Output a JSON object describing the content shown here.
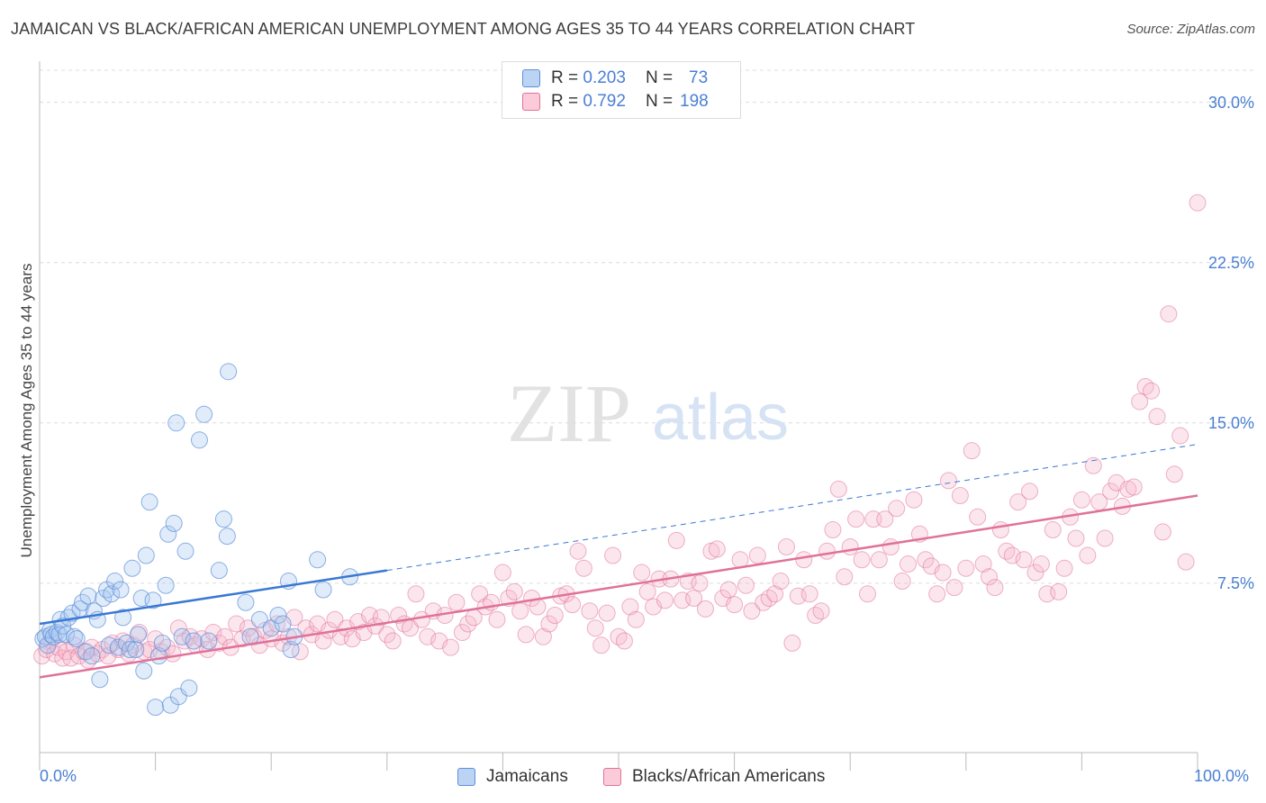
{
  "header": {
    "title": "JAMAICAN VS BLACK/AFRICAN AMERICAN UNEMPLOYMENT AMONG AGES 35 TO 44 YEARS CORRELATION CHART",
    "source": "Source: ZipAtlas.com"
  },
  "watermark": {
    "zip": "ZIP",
    "atlas": "atlas"
  },
  "legend_top": {
    "rows": [
      {
        "r_label": "R =",
        "r_value": "0.203",
        "n_label": "N =",
        "n_value": "73",
        "color": "#a9c8f0"
      },
      {
        "r_label": "R =",
        "r_value": "0.792",
        "n_label": "N =",
        "n_value": "198",
        "color": "#f7b6cb"
      }
    ]
  },
  "chart_data": {
    "type": "scatter",
    "title": "JAMAICAN VS BLACK/AFRICAN AMERICAN UNEMPLOYMENT AMONG AGES 35 TO 44 YEARS CORRELATION CHART",
    "xlabel": "",
    "ylabel": "Unemployment Among Ages 35 to 44 years",
    "xlim": [
      0,
      100
    ],
    "ylim": [
      0,
      31.5
    ],
    "x_tick_labels": [
      "0.0%",
      "100.0%"
    ],
    "y_ticks": [
      7.5,
      15.0,
      22.5,
      30.0
    ],
    "y_tick_labels": [
      "7.5%",
      "15.0%",
      "22.5%",
      "30.0%"
    ],
    "grid": "horizontal dashed",
    "legend_position": "top-center and bottom",
    "series": [
      {
        "name": "Jamaicans",
        "color": "#5b8fd9",
        "fill": "#a9c8f0",
        "trend": {
          "x": [
            0,
            30
          ],
          "y": [
            5.6,
            8.1
          ],
          "dashed_to": [
            100,
            14.0
          ]
        },
        "points": [
          [
            0.3,
            4.9
          ],
          [
            0.5,
            5.0
          ],
          [
            0.7,
            4.6
          ],
          [
            0.9,
            5.3
          ],
          [
            1.0,
            5.1
          ],
          [
            1.2,
            5.0
          ],
          [
            1.5,
            5.2
          ],
          [
            1.7,
            5.1
          ],
          [
            1.8,
            5.8
          ],
          [
            2.0,
            5.5
          ],
          [
            2.3,
            5.1
          ],
          [
            2.5,
            5.9
          ],
          [
            2.8,
            6.1
          ],
          [
            3.0,
            5.0
          ],
          [
            3.2,
            4.9
          ],
          [
            3.5,
            6.3
          ],
          [
            3.7,
            6.6
          ],
          [
            4.0,
            4.3
          ],
          [
            4.2,
            6.9
          ],
          [
            4.5,
            4.1
          ],
          [
            4.7,
            6.2
          ],
          [
            5.0,
            5.8
          ],
          [
            5.2,
            3.0
          ],
          [
            5.5,
            6.8
          ],
          [
            5.8,
            7.2
          ],
          [
            6.0,
            4.6
          ],
          [
            6.2,
            7.0
          ],
          [
            6.5,
            7.6
          ],
          [
            6.8,
            4.5
          ],
          [
            7.0,
            7.2
          ],
          [
            7.2,
            5.9
          ],
          [
            7.5,
            4.7
          ],
          [
            7.8,
            4.4
          ],
          [
            8.0,
            8.2
          ],
          [
            8.3,
            4.4
          ],
          [
            8.5,
            5.1
          ],
          [
            8.8,
            6.8
          ],
          [
            9.0,
            3.4
          ],
          [
            9.2,
            8.8
          ],
          [
            9.5,
            11.3
          ],
          [
            9.8,
            6.7
          ],
          [
            10.0,
            1.7
          ],
          [
            10.3,
            4.1
          ],
          [
            10.6,
            4.7
          ],
          [
            10.9,
            7.4
          ],
          [
            11.1,
            9.8
          ],
          [
            11.3,
            1.8
          ],
          [
            11.6,
            10.3
          ],
          [
            11.8,
            15.0
          ],
          [
            12.0,
            2.2
          ],
          [
            12.3,
            5.0
          ],
          [
            12.6,
            9.0
          ],
          [
            12.9,
            2.6
          ],
          [
            13.3,
            4.8
          ],
          [
            13.8,
            14.2
          ],
          [
            14.2,
            15.4
          ],
          [
            14.6,
            4.8
          ],
          [
            15.5,
            8.1
          ],
          [
            15.9,
            10.5
          ],
          [
            16.2,
            9.7
          ],
          [
            16.3,
            17.4
          ],
          [
            17.8,
            6.6
          ],
          [
            18.2,
            5.0
          ],
          [
            19.0,
            5.8
          ],
          [
            20.0,
            5.4
          ],
          [
            20.6,
            6.0
          ],
          [
            21.0,
            5.6
          ],
          [
            21.5,
            7.6
          ],
          [
            21.7,
            4.4
          ],
          [
            22.0,
            5.0
          ],
          [
            24.0,
            8.6
          ],
          [
            24.5,
            7.2
          ],
          [
            26.8,
            7.8
          ]
        ]
      },
      {
        "name": "Blacks/African Americans",
        "color": "#e0729a",
        "fill": "#f7b6cb",
        "trend": {
          "x": [
            0,
            100
          ],
          "y": [
            3.1,
            11.6
          ]
        },
        "points": [
          [
            0.2,
            4.1
          ],
          [
            0.6,
            4.4
          ],
          [
            1.0,
            4.8
          ],
          [
            1.3,
            4.2
          ],
          [
            1.6,
            4.5
          ],
          [
            2.0,
            4.0
          ],
          [
            2.3,
            4.3
          ],
          [
            2.7,
            4.0
          ],
          [
            3.0,
            4.6
          ],
          [
            3.4,
            4.1
          ],
          [
            3.8,
            4.3
          ],
          [
            4.2,
            3.9
          ],
          [
            4.5,
            4.5
          ],
          [
            5.0,
            4.2
          ],
          [
            5.4,
            4.4
          ],
          [
            5.9,
            4.1
          ],
          [
            6.3,
            4.7
          ],
          [
            6.8,
            4.4
          ],
          [
            7.2,
            4.8
          ],
          [
            7.7,
            4.2
          ],
          [
            8.1,
            4.6
          ],
          [
            8.6,
            5.2
          ],
          [
            9.0,
            4.3
          ],
          [
            9.5,
            4.4
          ],
          [
            10.0,
            4.9
          ],
          [
            10.5,
            4.3
          ],
          [
            11.0,
            4.5
          ],
          [
            11.5,
            4.2
          ],
          [
            12.0,
            5.4
          ],
          [
            12.5,
            4.8
          ],
          [
            13.0,
            5.0
          ],
          [
            13.5,
            4.6
          ],
          [
            14.0,
            4.9
          ],
          [
            14.5,
            4.4
          ],
          [
            15.0,
            5.2
          ],
          [
            15.5,
            4.7
          ],
          [
            16.0,
            5.0
          ],
          [
            16.5,
            4.5
          ],
          [
            17.0,
            5.6
          ],
          [
            17.5,
            4.9
          ],
          [
            18.0,
            5.4
          ],
          [
            18.5,
            5.0
          ],
          [
            19.0,
            4.6
          ],
          [
            19.5,
            5.3
          ],
          [
            20.0,
            4.9
          ],
          [
            20.5,
            5.6
          ],
          [
            21.0,
            4.7
          ],
          [
            21.5,
            5.0
          ],
          [
            22.0,
            5.9
          ],
          [
            22.5,
            4.3
          ],
          [
            23.0,
            5.4
          ],
          [
            23.5,
            5.1
          ],
          [
            24.0,
            5.6
          ],
          [
            24.5,
            4.8
          ],
          [
            25.0,
            5.3
          ],
          [
            25.5,
            5.8
          ],
          [
            26.0,
            5.0
          ],
          [
            26.5,
            5.4
          ],
          [
            27.0,
            4.9
          ],
          [
            27.5,
            5.7
          ],
          [
            28.0,
            5.2
          ],
          [
            28.5,
            6.0
          ],
          [
            29.0,
            5.5
          ],
          [
            29.5,
            5.9
          ],
          [
            30.0,
            5.1
          ],
          [
            30.5,
            4.8
          ],
          [
            31.0,
            6.0
          ],
          [
            31.5,
            5.6
          ],
          [
            32.0,
            5.4
          ],
          [
            32.5,
            7.0
          ],
          [
            33.0,
            5.8
          ],
          [
            33.5,
            5.0
          ],
          [
            34.0,
            6.2
          ],
          [
            34.5,
            4.8
          ],
          [
            35.0,
            6.0
          ],
          [
            35.5,
            4.5
          ],
          [
            36.0,
            6.6
          ],
          [
            36.5,
            5.2
          ],
          [
            37.0,
            5.6
          ],
          [
            37.5,
            5.9
          ],
          [
            38.0,
            7.0
          ],
          [
            38.5,
            6.4
          ],
          [
            39.0,
            6.6
          ],
          [
            39.5,
            5.8
          ],
          [
            40.0,
            8.0
          ],
          [
            40.5,
            6.8
          ],
          [
            41.0,
            7.1
          ],
          [
            41.5,
            6.2
          ],
          [
            42.0,
            5.1
          ],
          [
            42.5,
            6.8
          ],
          [
            43.0,
            6.4
          ],
          [
            43.5,
            5.0
          ],
          [
            44.0,
            5.6
          ],
          [
            44.5,
            6.0
          ],
          [
            45.0,
            6.9
          ],
          [
            45.5,
            7.0
          ],
          [
            46.0,
            6.5
          ],
          [
            46.5,
            9.0
          ],
          [
            47.0,
            8.2
          ],
          [
            47.5,
            6.2
          ],
          [
            48.0,
            5.4
          ],
          [
            48.5,
            4.6
          ],
          [
            49.0,
            6.1
          ],
          [
            49.5,
            8.8
          ],
          [
            50.0,
            5.0
          ],
          [
            50.5,
            4.8
          ],
          [
            51.0,
            6.4
          ],
          [
            51.5,
            5.8
          ],
          [
            52.0,
            8.0
          ],
          [
            52.5,
            7.1
          ],
          [
            53.0,
            6.4
          ],
          [
            53.5,
            7.7
          ],
          [
            54.0,
            6.7
          ],
          [
            54.5,
            7.7
          ],
          [
            55.0,
            9.5
          ],
          [
            55.5,
            6.7
          ],
          [
            56.0,
            7.6
          ],
          [
            56.5,
            6.8
          ],
          [
            57.0,
            7.5
          ],
          [
            57.5,
            6.3
          ],
          [
            58.0,
            9.0
          ],
          [
            58.5,
            9.1
          ],
          [
            59.0,
            6.8
          ],
          [
            59.5,
            7.2
          ],
          [
            60.0,
            6.5
          ],
          [
            60.5,
            8.6
          ],
          [
            61.0,
            7.4
          ],
          [
            61.5,
            6.2
          ],
          [
            62.0,
            8.8
          ],
          [
            62.5,
            6.6
          ],
          [
            63.0,
            6.8
          ],
          [
            63.5,
            7.0
          ],
          [
            64.0,
            7.6
          ],
          [
            64.5,
            9.2
          ],
          [
            65.0,
            4.7
          ],
          [
            65.5,
            6.9
          ],
          [
            66.0,
            8.6
          ],
          [
            66.5,
            7.0
          ],
          [
            67.0,
            6.0
          ],
          [
            67.5,
            6.2
          ],
          [
            68.0,
            9.0
          ],
          [
            68.5,
            10.0
          ],
          [
            69.0,
            11.9
          ],
          [
            69.5,
            7.8
          ],
          [
            70.0,
            9.2
          ],
          [
            70.5,
            10.5
          ],
          [
            71.0,
            8.6
          ],
          [
            71.5,
            7.0
          ],
          [
            72.0,
            10.5
          ],
          [
            72.5,
            8.6
          ],
          [
            73.0,
            10.5
          ],
          [
            73.5,
            9.2
          ],
          [
            74.0,
            11.0
          ],
          [
            74.5,
            7.6
          ],
          [
            75.0,
            8.4
          ],
          [
            75.5,
            11.4
          ],
          [
            76.0,
            9.8
          ],
          [
            76.5,
            8.6
          ],
          [
            77.0,
            8.3
          ],
          [
            77.5,
            7.0
          ],
          [
            78.0,
            8.0
          ],
          [
            78.5,
            12.3
          ],
          [
            79.0,
            7.3
          ],
          [
            79.5,
            11.6
          ],
          [
            80.0,
            8.2
          ],
          [
            80.5,
            13.7
          ],
          [
            81.0,
            10.6
          ],
          [
            81.5,
            8.4
          ],
          [
            82.0,
            7.8
          ],
          [
            82.5,
            7.3
          ],
          [
            83.0,
            10.0
          ],
          [
            83.5,
            9.0
          ],
          [
            84.0,
            8.8
          ],
          [
            84.5,
            11.3
          ],
          [
            85.0,
            8.6
          ],
          [
            85.5,
            11.8
          ],
          [
            86.0,
            8.0
          ],
          [
            86.5,
            8.4
          ],
          [
            87.0,
            7.0
          ],
          [
            87.5,
            10.0
          ],
          [
            88.0,
            7.1
          ],
          [
            88.5,
            8.2
          ],
          [
            89.0,
            10.6
          ],
          [
            89.5,
            9.6
          ],
          [
            90.0,
            11.4
          ],
          [
            90.5,
            8.8
          ],
          [
            91.0,
            13.0
          ],
          [
            91.5,
            11.3
          ],
          [
            92.0,
            9.6
          ],
          [
            92.5,
            11.8
          ],
          [
            93.0,
            12.2
          ],
          [
            93.5,
            11.1
          ],
          [
            94.0,
            11.9
          ],
          [
            94.5,
            12.0
          ],
          [
            95.0,
            16.0
          ],
          [
            95.5,
            16.7
          ],
          [
            96.0,
            16.5
          ],
          [
            96.5,
            15.3
          ],
          [
            97.0,
            9.9
          ],
          [
            97.5,
            20.1
          ],
          [
            98.0,
            12.6
          ],
          [
            98.5,
            14.4
          ],
          [
            99.0,
            8.5
          ],
          [
            100.0,
            25.3
          ]
        ]
      }
    ]
  },
  "bottom_legend": {
    "items": [
      {
        "label": "Jamaicans",
        "color": "#a9c8f0",
        "border": "#5b8fd9"
      },
      {
        "label": "Blacks/African Americans",
        "color": "#f7b6cb",
        "border": "#e0729a"
      }
    ]
  }
}
